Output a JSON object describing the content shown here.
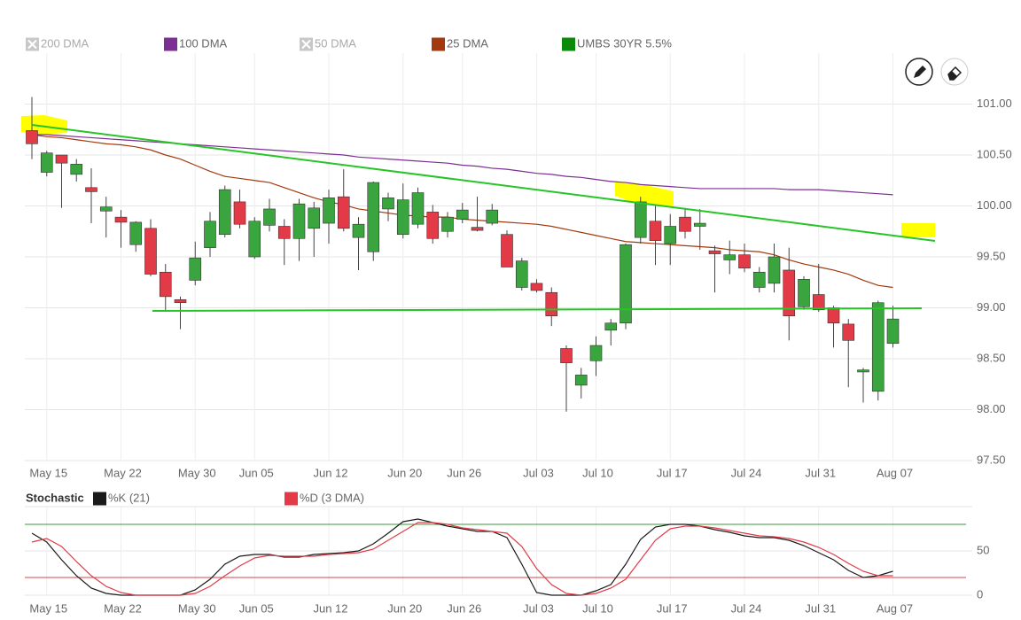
{
  "chart_data": [
    {
      "type": "candlestick",
      "name": "UMBS 30YR 5.5%",
      "color": "#0a8a0a",
      "up_color": "#3aa53f",
      "down_color": "#e23b47",
      "categories": [
        null,
        "May 15",
        null,
        null,
        null,
        null,
        "May 22",
        null,
        null,
        null,
        null,
        "May 30",
        null,
        null,
        null,
        "Jun 05",
        null,
        null,
        null,
        null,
        "Jun 12",
        null,
        null,
        null,
        null,
        "Jun 20",
        null,
        null,
        null,
        "Jun 26",
        null,
        null,
        null,
        null,
        "Jul 03",
        null,
        null,
        null,
        "Jul 10",
        null,
        null,
        null,
        null,
        "Jul 17",
        null,
        null,
        null,
        null,
        "Jul 24",
        null,
        null,
        null,
        null,
        "Jul 31",
        null,
        null,
        null,
        null,
        "Aug 07"
      ],
      "open": [
        100.74,
        100.33,
        100.5,
        100.31,
        100.18,
        99.95,
        99.89,
        99.62,
        99.78,
        99.35,
        99.08,
        99.27,
        99.59,
        99.72,
        100.04,
        99.5,
        99.81,
        99.8,
        99.68,
        99.78,
        99.83,
        100.09,
        99.69,
        99.55,
        99.97,
        99.72,
        99.82,
        99.94,
        99.75,
        99.87,
        99.79,
        99.83,
        99.72,
        99.2,
        99.24,
        99.15,
        98.6,
        98.24,
        98.48,
        98.78,
        98.85,
        99.69,
        99.85,
        99.63,
        99.89,
        99.8,
        99.56,
        99.47,
        99.52,
        99.2,
        99.24,
        99.37,
        99.01,
        99.13,
        99.0,
        98.84,
        98.37,
        98.18,
        98.65
      ],
      "high": [
        101.07,
        100.54,
        100.5,
        100.46,
        100.37,
        100.09,
        99.96,
        99.85,
        99.87,
        99.43,
        99.11,
        99.65,
        99.94,
        100.2,
        100.16,
        99.89,
        100.07,
        99.87,
        100.07,
        100.04,
        100.16,
        100.36,
        99.89,
        100.24,
        100.13,
        100.22,
        100.18,
        100.01,
        99.94,
        100.03,
        100.09,
        100.02,
        99.76,
        99.49,
        99.28,
        99.2,
        98.63,
        98.41,
        98.72,
        98.89,
        99.63,
        100.09,
        100.0,
        99.92,
        99.98,
        99.97,
        99.61,
        99.66,
        99.63,
        99.4,
        99.63,
        99.59,
        99.31,
        99.43,
        99.02,
        98.89,
        98.41,
        99.07,
        99.02
      ],
      "low": [
        100.46,
        100.29,
        99.98,
        100.24,
        99.83,
        99.69,
        99.59,
        99.55,
        99.31,
        98.96,
        98.79,
        99.22,
        99.5,
        99.69,
        99.78,
        99.48,
        99.75,
        99.42,
        99.46,
        99.5,
        99.63,
        99.75,
        99.37,
        99.46,
        99.85,
        99.68,
        99.78,
        99.63,
        99.69,
        99.83,
        99.75,
        99.81,
        99.4,
        99.17,
        99.15,
        98.82,
        97.98,
        98.11,
        98.33,
        98.63,
        98.79,
        99.63,
        99.42,
        99.42,
        99.68,
        99.57,
        99.15,
        99.33,
        99.35,
        99.15,
        99.15,
        98.68,
        98.98,
        98.96,
        98.61,
        98.22,
        98.07,
        98.09,
        98.61
      ],
      "close": [
        100.61,
        100.52,
        100.42,
        100.41,
        100.14,
        99.99,
        99.84,
        99.84,
        99.33,
        99.11,
        99.05,
        99.49,
        99.85,
        100.16,
        99.82,
        99.85,
        99.97,
        99.68,
        100.02,
        99.98,
        100.08,
        99.78,
        99.82,
        100.23,
        100.08,
        100.06,
        100.13,
        99.68,
        99.89,
        99.96,
        99.76,
        99.96,
        99.4,
        99.46,
        99.17,
        98.92,
        98.46,
        98.34,
        98.63,
        98.85,
        99.62,
        100.04,
        99.66,
        99.8,
        99.75,
        99.83,
        99.53,
        99.52,
        99.39,
        99.35,
        99.5,
        98.92,
        99.28,
        98.98,
        98.85,
        98.68,
        98.39,
        99.05,
        98.89
      ],
      "series": [
        {
          "name": "200 DMA",
          "visible": false
        },
        {
          "name": "100 DMA",
          "color": "#7b2f92",
          "values": [
            100.7,
            100.7,
            100.69,
            100.68,
            100.67,
            100.66,
            100.65,
            100.64,
            100.63,
            100.62,
            100.61,
            100.6,
            100.59,
            100.58,
            100.57,
            100.56,
            100.55,
            100.54,
            100.53,
            100.52,
            100.51,
            100.5,
            100.48,
            100.47,
            100.46,
            100.45,
            100.44,
            100.43,
            100.42,
            100.4,
            100.39,
            100.37,
            100.36,
            100.34,
            100.32,
            100.31,
            100.29,
            100.28,
            100.26,
            100.24,
            100.23,
            100.21,
            100.2,
            100.19,
            100.18,
            100.17,
            100.17,
            100.17,
            100.17,
            100.17,
            100.17,
            100.16,
            100.16,
            100.16,
            100.15,
            100.14,
            100.13,
            100.12,
            100.11
          ]
        },
        {
          "name": "50 DMA",
          "visible": false
        },
        {
          "name": "25 DMA",
          "color": "#a3390e",
          "values": [
            100.7,
            100.68,
            100.67,
            100.65,
            100.63,
            100.61,
            100.6,
            100.58,
            100.55,
            100.5,
            100.46,
            100.4,
            100.34,
            100.29,
            100.27,
            100.25,
            100.23,
            100.18,
            100.13,
            100.08,
            100.04,
            100.01,
            99.97,
            99.95,
            99.93,
            99.91,
            99.9,
            99.89,
            99.89,
            99.87,
            99.86,
            99.85,
            99.84,
            99.83,
            99.82,
            99.8,
            99.77,
            99.74,
            99.71,
            99.68,
            99.65,
            99.64,
            99.63,
            99.62,
            99.61,
            99.6,
            99.59,
            99.57,
            99.56,
            99.55,
            99.52,
            99.47,
            99.43,
            99.4,
            99.37,
            99.33,
            99.27,
            99.22,
            99.2
          ]
        }
      ],
      "ylim": [
        97.5,
        101.5
      ],
      "yticks": [
        {
          "value": 97.5,
          "label": "97.50"
        },
        {
          "value": 98,
          "label": "98.00"
        },
        {
          "value": 98.5,
          "label": "98.50"
        },
        {
          "value": 99,
          "label": "99.00"
        },
        {
          "value": 99.5,
          "label": "99.50"
        },
        {
          "value": 100,
          "label": "100.00"
        },
        {
          "value": 100.5,
          "label": "100.50"
        },
        {
          "value": 101,
          "label": "101.00"
        }
      ],
      "grid": true
    },
    {
      "type": "line",
      "title": "Stochastic",
      "categories": [
        null,
        "May 15",
        null,
        null,
        null,
        null,
        "May 22",
        null,
        null,
        null,
        null,
        "May 30",
        null,
        null,
        null,
        "Jun 05",
        null,
        null,
        null,
        null,
        "Jun 12",
        null,
        null,
        null,
        null,
        "Jun 20",
        null,
        null,
        null,
        "Jun 26",
        null,
        null,
        null,
        null,
        "Jul 03",
        null,
        null,
        null,
        "Jul 10",
        null,
        null,
        null,
        null,
        "Jul 17",
        null,
        null,
        null,
        null,
        "Jul 24",
        null,
        null,
        null,
        null,
        "Jul 31",
        null,
        null,
        null,
        null,
        "Aug 07"
      ],
      "series": [
        {
          "name": "%K (21)",
          "color": "#1a1a1a",
          "values": [
            70,
            60,
            40,
            22,
            8,
            2,
            0,
            0,
            0,
            0,
            0,
            6,
            18,
            35,
            44,
            46,
            46,
            43,
            43,
            46,
            47,
            48,
            50,
            58,
            70,
            83,
            86,
            82,
            78,
            75,
            72,
            72,
            65,
            35,
            3,
            0,
            0,
            0,
            5,
            12,
            35,
            63,
            77,
            80,
            80,
            78,
            74,
            71,
            67,
            65,
            65,
            62,
            56,
            48,
            40,
            28,
            20,
            22,
            27
          ]
        },
        {
          "name": "%D (3 DMA)",
          "color": "#e23b47",
          "values": [
            60,
            64,
            55,
            38,
            22,
            10,
            3,
            0,
            0,
            0,
            0,
            2,
            10,
            22,
            33,
            42,
            45,
            44,
            44,
            44,
            46,
            47,
            48,
            52,
            62,
            72,
            82,
            82,
            80,
            76,
            74,
            72,
            70,
            55,
            30,
            12,
            2,
            0,
            2,
            8,
            18,
            40,
            62,
            75,
            78,
            78,
            76,
            73,
            70,
            67,
            66,
            64,
            60,
            54,
            46,
            36,
            27,
            22,
            22
          ]
        }
      ],
      "levels": [
        {
          "value": 80,
          "color": "#3a9a3a"
        },
        {
          "value": 20,
          "color": "#d84444"
        }
      ],
      "ylim": [
        0,
        100
      ],
      "yticks": [
        0,
        50
      ],
      "grid": true
    }
  ]
}
